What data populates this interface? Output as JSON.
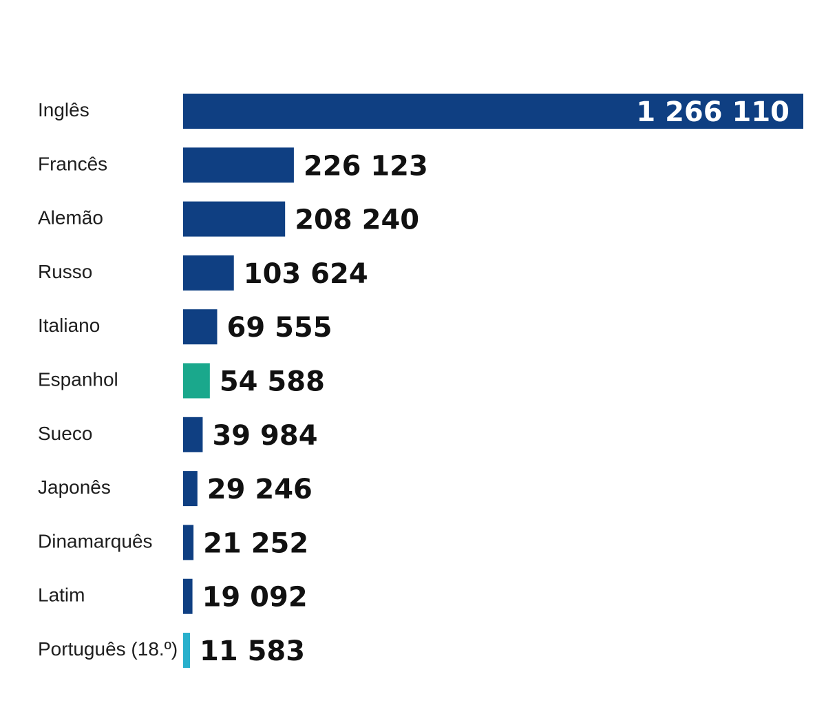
{
  "chart_data": {
    "type": "bar",
    "orientation": "horizontal",
    "categories": [
      "Inglês",
      "Francês",
      "Alemão",
      "Russo",
      "Italiano",
      "Espanhol",
      "Sueco",
      "Japonês",
      "Dinamarquês",
      "Latim",
      "Português (18.º)"
    ],
    "values": [
      1266110,
      226123,
      208240,
      103624,
      69555,
      54588,
      39984,
      29246,
      21252,
      19092,
      11583
    ],
    "value_labels": [
      "1 266 110",
      "226 123",
      "208 240",
      "103 624",
      "69 555",
      "54 588",
      "39 984",
      "29 246",
      "21 252",
      "19 092",
      "11 583"
    ],
    "bar_colors": [
      "#0f3f82",
      "#0f3f82",
      "#0f3f82",
      "#0f3f82",
      "#0f3f82",
      "#1aa88c",
      "#0f3f82",
      "#0f3f82",
      "#0f3f82",
      "#0f3f82",
      "#29b0cc"
    ],
    "title": "",
    "xlabel": "",
    "ylabel": "",
    "xlim": [
      0,
      1266110
    ],
    "grid": false,
    "legend": "none"
  }
}
